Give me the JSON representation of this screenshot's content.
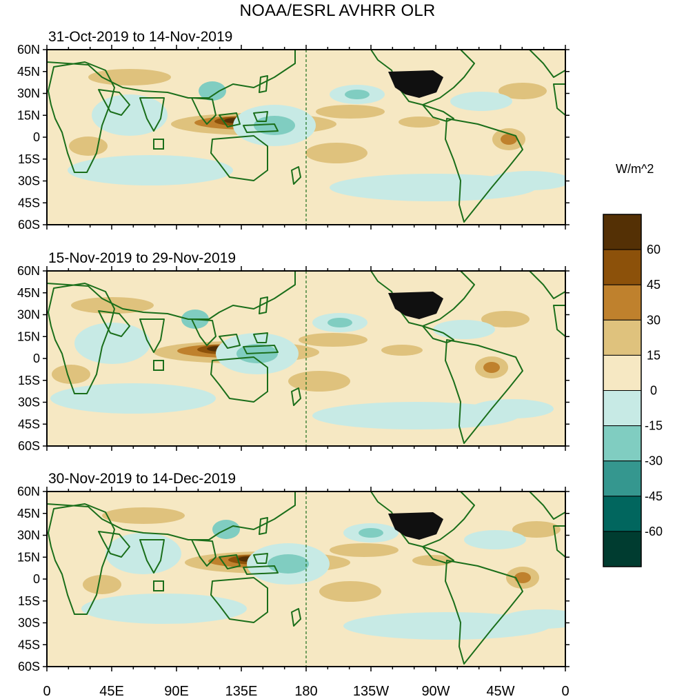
{
  "title": "NOAA/ESRL AVHRR OLR",
  "panels": [
    {
      "title": "31-Oct-2019 to 14-Nov-2019"
    },
    {
      "title": "15-Nov-2019 to 29-Nov-2019"
    },
    {
      "title": "30-Nov-2019 to 14-Dec-2019"
    }
  ],
  "lat_labels": [
    "60N",
    "45N",
    "30N",
    "15N",
    "0",
    "15S",
    "30S",
    "45S",
    "60S"
  ],
  "lon_labels": [
    "0",
    "45E",
    "90E",
    "135E",
    "180",
    "135W",
    "90W",
    "45W",
    "0"
  ],
  "colorbar": {
    "unit": "W/m^2",
    "labels": [
      "60",
      "45",
      "30",
      "15",
      "0",
      "-15",
      "-30",
      "-45",
      "-60"
    ],
    "colors": [
      "#543005",
      "#8c510a",
      "#bf812d",
      "#dfc27d",
      "#f6e8c3",
      "#c7eae5",
      "#80cdc1",
      "#35978f",
      "#01665e",
      "#003c30"
    ]
  },
  "palette": {
    "background": "#f6e8c3",
    "coast": "#1a6e1a",
    "land_mask": "#101010"
  }
}
